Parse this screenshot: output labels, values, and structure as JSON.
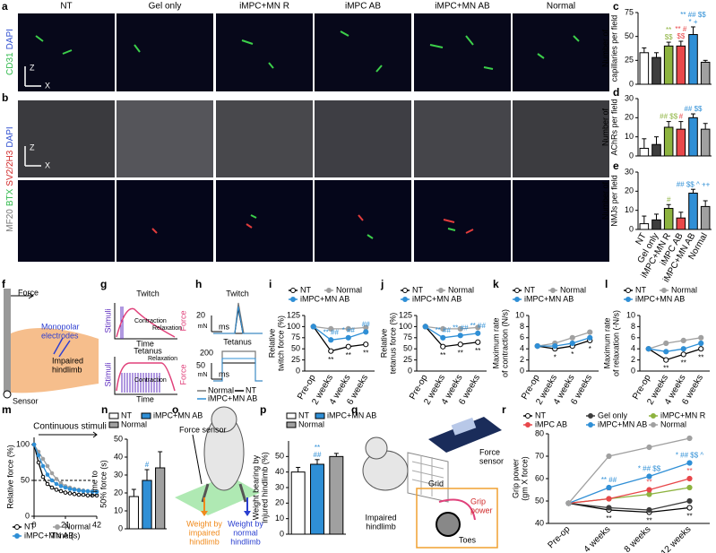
{
  "letters": [
    "a",
    "b",
    "c",
    "d",
    "e",
    "f",
    "g",
    "h",
    "i",
    "j",
    "k",
    "l",
    "m",
    "n",
    "o",
    "p",
    "q",
    "r"
  ],
  "images": {
    "columns": [
      "NT",
      "Gel only",
      "iMPC+MN R",
      "iMPC AB",
      "iMPC+MN AB",
      "Normal"
    ],
    "row_a_label": [
      "CD31",
      "DAPI"
    ],
    "row_b_label": [
      "MF20",
      "BTX",
      "SV2/2H3",
      "DAPI"
    ],
    "axis_z": "Z",
    "axis_x": "X"
  },
  "f": {
    "force": "Force",
    "electrodes": [
      "Monopolar",
      "electrodes"
    ],
    "limb": [
      "Impaired",
      "hindlimb"
    ],
    "sensor": "Sensor"
  },
  "g": {
    "twitch": "Twitch",
    "tetanus": "Tetanus",
    "stimuli": "Stimuli",
    "contraction": "Contraction",
    "relaxation": "Relaxation",
    "force": "Force",
    "time": "Time"
  },
  "h": {
    "twitch": "Twitch",
    "tetanus": "Tetanus",
    "scale_twitch": "20",
    "scale_tetanus": "50",
    "scale_tetanus_top": "200",
    "unit_force": "mN",
    "unit_time": "ms",
    "legend": [
      "Normal",
      "NT",
      "iMPC+MN AB"
    ]
  },
  "o": {
    "sensor": "Force sensor",
    "impaired": [
      "Weight by",
      "impaired",
      "hindlimb"
    ],
    "normal": [
      "Weight by",
      "normal",
      "hindlimb"
    ]
  },
  "q": {
    "sensor": [
      "Force",
      "sensor"
    ],
    "grid": "Grid",
    "limb": [
      "Impaired",
      "hindlimb"
    ],
    "grip": [
      "Grip",
      "power"
    ],
    "toes": "Toes"
  },
  "chart_data": [
    {
      "type": "bar",
      "ylabel": [
        "Number of",
        "capillaries per field"
      ],
      "values": [
        33,
        28,
        40,
        40,
        52,
        23
      ],
      "errors": [
        5,
        5,
        4,
        5,
        8,
        2
      ],
      "colors": [
        "#ffffff",
        "#3d3d3d",
        "#8db33f",
        "#e8474a",
        "#2f8fd6",
        "#a0a0a0"
      ],
      "edgecolor": "#000000",
      "ylim": [
        0,
        75
      ],
      "yticks": [
        0,
        25,
        50,
        75
      ],
      "annotations": [
        null,
        null,
        [
          "**",
          "$$"
        ],
        [
          "** #",
          "$$"
        ],
        [
          "** ## $$",
          "* +"
        ],
        null
      ]
    },
    {
      "type": "bar",
      "ylabel": [
        "Number of",
        "AChRs per field"
      ],
      "values": [
        4,
        6,
        15,
        14,
        20,
        14
      ],
      "errors": [
        5,
        4,
        3,
        4,
        2,
        3
      ],
      "colors": [
        "#ffffff",
        "#3d3d3d",
        "#8db33f",
        "#e8474a",
        "#2f8fd6",
        "#a0a0a0"
      ],
      "edgecolor": "#000000",
      "ylim": [
        0,
        30
      ],
      "yticks": [
        0,
        10,
        20,
        30
      ],
      "annotations": [
        null,
        null,
        [
          "## $$"
        ],
        [
          "#"
        ],
        [
          "## $$"
        ],
        null
      ]
    },
    {
      "type": "bar",
      "ylabel": [
        "Number of",
        "NMJs per field"
      ],
      "values": [
        3,
        5,
        11,
        6,
        19,
        12
      ],
      "errors": [
        4,
        3,
        2,
        3,
        2,
        3
      ],
      "colors": [
        "#ffffff",
        "#3d3d3d",
        "#8db33f",
        "#e8474a",
        "#2f8fd6",
        "#a0a0a0"
      ],
      "edgecolor": "#000000",
      "ylim": [
        0,
        30
      ],
      "yticks": [
        0,
        10,
        20,
        30
      ],
      "categories": [
        "NT",
        "Gel only",
        "iMPC+MN R",
        "iMPC AB",
        "iMPC+MN AB",
        "Normal"
      ],
      "categories_as": "axis",
      "annotations": [
        null,
        null,
        [
          "#"
        ],
        null,
        [
          "## $$ ^ ++"
        ],
        null
      ]
    },
    {
      "type": "line",
      "ylabel": [
        "Relative",
        "twitch force (%)"
      ],
      "categories": [
        "Pre-op",
        "2 weeks",
        "4 weeks",
        "6 weeks"
      ],
      "ylim": [
        0,
        125
      ],
      "yticks": [
        0,
        25,
        50,
        75,
        100,
        125
      ],
      "series": [
        {
          "name": "NT",
          "color": "#ffffff",
          "edgecolor": "#000000",
          "values": [
            100,
            45,
            55,
            60
          ],
          "annotations": [
            null,
            "**",
            "**",
            "**"
          ],
          "annotation_position": "below"
        },
        {
          "name": "Normal",
          "color": "#a0a0a0",
          "values": [
            100,
            95,
            95,
            98
          ]
        },
        {
          "name": "iMPC+MN AB",
          "color": "#2f8fd6",
          "values": [
            100,
            70,
            75,
            88
          ],
          "annotations": [
            null,
            "** ##",
            "* ##",
            "##"
          ],
          "annotation_position": "above"
        }
      ]
    },
    {
      "type": "line",
      "ylabel": [
        "Relative",
        "tetanus force (%)"
      ],
      "categories": [
        "Pre-op",
        "2 weeks",
        "4 weeks",
        "6 weeks"
      ],
      "ylim": [
        0,
        125
      ],
      "yticks": [
        0,
        25,
        50,
        75,
        100,
        125
      ],
      "series": [
        {
          "name": "NT",
          "color": "#ffffff",
          "edgecolor": "#000000",
          "values": [
            100,
            55,
            60,
            65
          ],
          "annotations": [
            null,
            "**",
            "**",
            "**"
          ],
          "annotation_position": "below"
        },
        {
          "name": "Normal",
          "color": "#a0a0a0",
          "values": [
            100,
            95,
            95,
            98
          ]
        },
        {
          "name": "iMPC+MN AB",
          "color": "#2f8fd6",
          "values": [
            100,
            75,
            80,
            85
          ],
          "annotations": [
            null,
            "** ##",
            "** ##",
            "** ##"
          ],
          "annotation_position": "above"
        }
      ]
    },
    {
      "type": "line",
      "ylabel": [
        "Maximum rate",
        "of contraction (N/s)"
      ],
      "categories": [
        "Pre-op",
        "2 weeks",
        "4 weeks",
        "6 weeks"
      ],
      "ylim": [
        0,
        10
      ],
      "yticks": [
        0,
        2,
        4,
        6,
        8,
        10
      ],
      "series": [
        {
          "name": "NT",
          "color": "#ffffff",
          "edgecolor": "#000000",
          "values": [
            4.5,
            4,
            4.5,
            5.5
          ],
          "annotations": [
            null,
            "*",
            "*",
            "*"
          ],
          "annotation_position": "below"
        },
        {
          "name": "Normal",
          "color": "#a0a0a0",
          "values": [
            4.5,
            5,
            6,
            7
          ]
        },
        {
          "name": "iMPC+MN AB",
          "color": "#2f8fd6",
          "values": [
            4.5,
            4.5,
            5,
            6
          ]
        }
      ]
    },
    {
      "type": "line",
      "ylabel": [
        "Maximum rate",
        "of relaxation (-N/s)"
      ],
      "categories": [
        "Pre-op",
        "2 weeks",
        "4 weeks",
        "6 weeks"
      ],
      "ylim": [
        0,
        10
      ],
      "yticks": [
        0,
        2,
        4,
        6,
        8,
        10
      ],
      "series": [
        {
          "name": "NT",
          "color": "#ffffff",
          "edgecolor": "#000000",
          "values": [
            4,
            2,
            3,
            4
          ],
          "annotations": [
            null,
            "**",
            "**",
            "**"
          ],
          "annotation_position": "below"
        },
        {
          "name": "Normal",
          "color": "#a0a0a0",
          "values": [
            4,
            5,
            5.5,
            6
          ]
        },
        {
          "name": "iMPC+MN AB",
          "color": "#2f8fd6",
          "values": [
            4,
            3.5,
            4,
            5
          ]
        }
      ]
    },
    {
      "type": "line",
      "ylabel": [
        "Relative force (%)"
      ],
      "xlabel": "Time (s)",
      "annotation": "Continuous stimuli",
      "x": [
        0,
        3,
        6,
        9,
        12,
        15,
        18,
        21,
        24,
        27,
        30,
        33,
        36,
        39,
        42
      ],
      "xlim": [
        0,
        42
      ],
      "xticks": [
        0,
        21,
        42
      ],
      "ylim": [
        0,
        110
      ],
      "yticks": [
        0,
        50,
        100
      ],
      "hline": 50,
      "series": [
        {
          "name": "NT",
          "color": "#ffffff",
          "edgecolor": "#000000",
          "values": [
            100,
            75,
            55,
            45,
            40,
            37,
            35,
            33,
            32,
            31,
            30,
            30,
            29,
            29,
            29
          ]
        },
        {
          "name": "Normal",
          "color": "#a0a0a0",
          "values": [
            100,
            90,
            80,
            70,
            60,
            52,
            46,
            42,
            40,
            38,
            37,
            36,
            35,
            35,
            35
          ]
        },
        {
          "name": "iMPC+MN AB",
          "color": "#2f8fd6",
          "values": [
            100,
            85,
            70,
            58,
            50,
            45,
            42,
            40,
            38,
            37,
            36,
            35,
            35,
            34,
            34
          ]
        }
      ]
    },
    {
      "type": "bar",
      "ylabel": [
        "Time to",
        "50% force (s)"
      ],
      "categories": [
        "NT",
        "iMPC+MN AB",
        "Normal"
      ],
      "categories_as": "legend",
      "values": [
        18,
        27,
        34
      ],
      "errors": [
        4,
        6,
        9
      ],
      "colors": [
        "#ffffff",
        "#2f8fd6",
        "#a0a0a0"
      ],
      "edgecolor": "#000000",
      "ylim": [
        0,
        50
      ],
      "yticks": [
        0,
        10,
        20,
        30,
        40,
        50
      ],
      "annotations": [
        null,
        [
          "#"
        ],
        null
      ]
    },
    {
      "type": "bar",
      "ylabel": [
        "Weight bearing by",
        "injured hindlimb (%)"
      ],
      "categories": [
        "NT",
        "iMPC+MN AB",
        "Normal"
      ],
      "categories_as": "legend",
      "values": [
        40,
        45,
        50
      ],
      "errors": [
        3,
        3,
        2
      ],
      "colors": [
        "#ffffff",
        "#2f8fd6",
        "#a0a0a0"
      ],
      "edgecolor": "#000000",
      "ylim": [
        0,
        60
      ],
      "yticks": [
        0,
        10,
        20,
        30,
        40,
        50
      ],
      "annotations": [
        null,
        [
          "**",
          "##"
        ],
        null
      ]
    },
    {
      "type": "line",
      "ylabel": [
        "Grip power",
        "(gm X force)"
      ],
      "categories": [
        "Pre-op",
        "4 weeks",
        "8 weeks",
        "12 weeks"
      ],
      "ylim": [
        40,
        80
      ],
      "yticks": [
        40,
        50,
        60,
        70,
        80
      ],
      "series": [
        {
          "name": "NT",
          "color": "#ffffff",
          "edgecolor": "#000000",
          "values": [
            49,
            46,
            45,
            47
          ],
          "annotations": [
            null,
            "**",
            "**",
            "**"
          ],
          "annotation_position": "below"
        },
        {
          "name": "Gel only",
          "color": "#3d3d3d",
          "values": [
            49,
            47,
            46,
            50
          ]
        },
        {
          "name": "iMPC+MN R",
          "color": "#8db33f",
          "values": [
            49,
            51,
            53,
            56
          ]
        },
        {
          "name": "iMPC AB",
          "color": "#e8474a",
          "values": [
            49,
            51,
            55,
            60
          ],
          "annotations": [
            null,
            "**",
            "**",
            "**"
          ],
          "annotation_position": "above"
        },
        {
          "name": "iMPC+MN AB",
          "color": "#2f8fd6",
          "values": [
            49,
            56,
            61,
            67
          ],
          "annotations": [
            null,
            "** ##",
            "* ## $$",
            "* ## $$ ^"
          ],
          "annotation_position": "above"
        },
        {
          "name": "Normal",
          "color": "#a0a0a0",
          "values": [
            49,
            70,
            74,
            78
          ]
        }
      ]
    }
  ]
}
